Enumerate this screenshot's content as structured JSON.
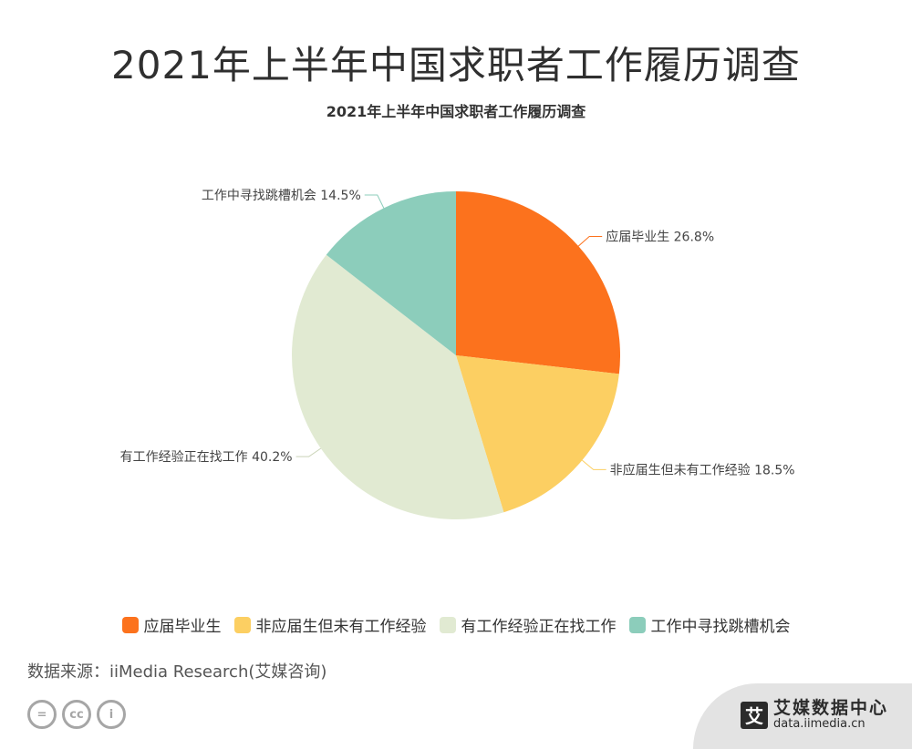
{
  "header": {
    "title": "2021年上半年中国求职者工作履历调查"
  },
  "chart_data": {
    "type": "pie",
    "title": "2021年上半年中国求职者工作履历调查",
    "legend_position": "bottom",
    "slices": [
      {
        "label": "应届毕业生",
        "value": 26.8,
        "display": "26.8%",
        "color": "#fc721d"
      },
      {
        "label": "非应届生但未有工作经验",
        "value": 18.5,
        "display": "18.5%",
        "color": "#fccf62"
      },
      {
        "label": "有工作经验正在找工作",
        "value": 40.2,
        "display": "40.2%",
        "color": "#e1ead2"
      },
      {
        "label": "工作中寻找跳槽机会",
        "value": 14.5,
        "display": "14.5%",
        "color": "#8ccdbb"
      }
    ]
  },
  "footer": {
    "source": "数据来源：iiMedia Research(艾媒咨询)",
    "brand_logo": "艾",
    "brand_name": "艾媒数据中心",
    "brand_url": "data.iimedia.cn",
    "license_icons": [
      {
        "name": "equals-icon",
        "glyph": "="
      },
      {
        "name": "cc-icon",
        "glyph": "cc"
      },
      {
        "name": "person-icon",
        "glyph": "i"
      }
    ]
  }
}
